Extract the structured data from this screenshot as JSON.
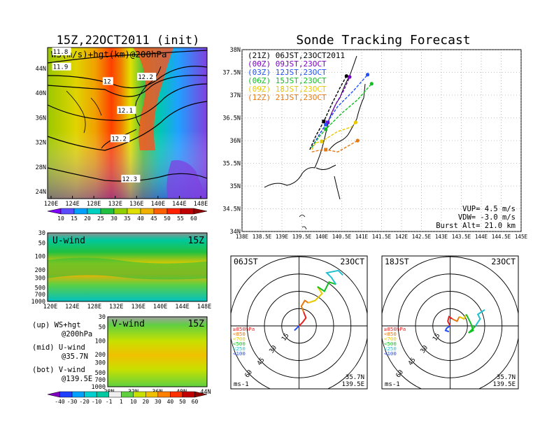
{
  "header": {
    "left_title": "15Z,22OCT2011 (init)",
    "right_title": "Sonde Tracking Forecast"
  },
  "colors": {
    "c00": "#7a00c8",
    "c03": "#2050ff",
    "c06": "#10c020",
    "c09": "#e8c800",
    "c12": "#e87810",
    "c21": "#000000"
  },
  "chart_data": [
    {
      "type": "heatmap",
      "panel": "map-200hPa",
      "label": "WS(m/s)+hgt(km)@200hPa",
      "x_ticks": [
        "120E",
        "124E",
        "128E",
        "132E",
        "136E",
        "140E",
        "144E",
        "148E"
      ],
      "y_ticks": [
        "44N",
        "40N",
        "36N",
        "32N",
        "28N",
        "24N"
      ],
      "xlim": [
        120,
        150
      ],
      "ylim": [
        22,
        46
      ],
      "contour_labels": [
        {
          "text": "11.8",
          "lon": 121.0,
          "lat": 45.1
        },
        {
          "text": "11.9",
          "lon": 121.0,
          "lat": 42.7
        },
        {
          "text": "12",
          "lon": 130.5,
          "lat": 40.4
        },
        {
          "text": "12.2",
          "lon": 137.0,
          "lat": 41.1
        },
        {
          "text": "12.1",
          "lon": 133.2,
          "lat": 35.8
        },
        {
          "text": "12.2",
          "lon": 132.0,
          "lat": 31.3
        },
        {
          "text": "12.3",
          "lon": 134.0,
          "lat": 24.9
        }
      ],
      "colorbar_ticks": [
        "10",
        "15",
        "20",
        "25",
        "30",
        "35",
        "40",
        "45",
        "50",
        "55",
        "60"
      ],
      "colorbar_colors": [
        "#8000ff",
        "#5a4cff",
        "#00a0ff",
        "#00d0c0",
        "#20c040",
        "#90d000",
        "#e0e000",
        "#f0b000",
        "#ff6000",
        "#ff2000",
        "#c00000",
        "#900000"
      ]
    },
    {
      "type": "heatmap",
      "panel": "u-wind",
      "label": "U-wind",
      "time": "15Z",
      "y_ticks": [
        "30",
        "50",
        "100",
        "200",
        "300",
        "500",
        "700",
        "1000"
      ],
      "x_ticks": [
        "120E",
        "124E",
        "128E",
        "132E",
        "136E",
        "140E",
        "144E",
        "148E"
      ]
    },
    {
      "type": "heatmap",
      "panel": "v-wind",
      "label": "V-wind",
      "time": "15Z",
      "y_ticks": [
        "30",
        "50",
        "100",
        "200",
        "300",
        "500",
        "700",
        "1000"
      ],
      "x_ticks": [
        "28N",
        "32N",
        "36N",
        "40N",
        "44N"
      ],
      "colorbar_ticks": [
        "-40",
        "-30",
        "-20",
        "-10",
        "-1",
        "1",
        "10",
        "20",
        "30",
        "40",
        "50",
        "60"
      ],
      "colorbar_colors": [
        "#8000c0",
        "#2040ff",
        "#00a0ff",
        "#00d0d0",
        "#00c8a0",
        "#f0f0f0",
        "#60d040",
        "#c8e000",
        "#f0c000",
        "#ff8000",
        "#ff3000",
        "#c00000",
        "#900000"
      ]
    },
    {
      "type": "line",
      "panel": "sonde-tracking-map",
      "x_ticks": [
        "138E",
        "138.5E",
        "139E",
        "139.5E",
        "140E",
        "140.5E",
        "141E",
        "141.5E",
        "142E",
        "142.5E",
        "143E",
        "143.5E",
        "144E",
        "144.5E",
        "145E"
      ],
      "y_ticks": [
        "38N",
        "37.5N",
        "37N",
        "36.5N",
        "36N",
        "35.5N",
        "35N",
        "34.5N",
        "34N"
      ],
      "xlim": [
        138,
        145
      ],
      "ylim": [
        34,
        38
      ],
      "series": [
        {
          "name": "(21Z)  06JST,23OCT2011",
          "color": "#000000",
          "x": [
            139.7,
            139.85,
            140.05,
            140.25,
            140.45,
            140.62
          ],
          "y": [
            35.8,
            36.1,
            36.42,
            36.8,
            37.15,
            37.42
          ]
        },
        {
          "name": "(00Z)  09JST,23OCT",
          "color": "#7a00c8",
          "x": [
            139.75,
            139.95,
            140.15,
            140.35,
            140.55,
            140.7
          ],
          "y": [
            35.85,
            36.15,
            36.4,
            36.8,
            37.1,
            37.4
          ]
        },
        {
          "name": "(03Z)  12JST,23OCT",
          "color": "#2050ff",
          "x": [
            139.75,
            139.95,
            140.1,
            140.4,
            140.8,
            141.15
          ],
          "y": [
            35.85,
            36.15,
            36.35,
            36.75,
            37.1,
            37.45
          ]
        },
        {
          "name": "(06Z)  15JST,23OCT",
          "color": "#10c020",
          "x": [
            139.75,
            139.95,
            140.1,
            140.5,
            140.9,
            141.25
          ],
          "y": [
            35.85,
            36.1,
            36.25,
            36.6,
            36.9,
            37.25
          ]
        },
        {
          "name": "(09Z)  18JST,23OCT",
          "color": "#e8c800",
          "x": [
            139.75,
            139.85,
            140.0,
            140.4,
            140.75,
            140.85
          ],
          "y": [
            35.8,
            35.95,
            35.98,
            36.2,
            36.3,
            36.4
          ]
        },
        {
          "name": "(12Z)  21JST,23OCT",
          "color": "#e87810",
          "x": [
            139.75,
            139.9,
            140.1,
            140.4,
            140.6,
            140.9
          ],
          "y": [
            35.75,
            35.78,
            35.8,
            35.75,
            35.85,
            36.0
          ]
        }
      ],
      "annotations": [
        "VUP=  4.5 m/s",
        "VDW= -3.0 m/s",
        "Burst Alt= 21.0 km"
      ]
    },
    {
      "type": "line",
      "panel": "hodograph-06JST",
      "time": "06JST",
      "date": "23OCT",
      "rings": [
        "15",
        "30",
        "45",
        "60"
      ],
      "legend": [
        "≥850hPa",
        "<850",
        "<700",
        "<500",
        "<250",
        "<100"
      ],
      "location": [
        "35.7N",
        "139.5E"
      ],
      "units": "ms-1",
      "series": [
        {
          "name": "≥850hPa",
          "color": "#e82020",
          "u": [
            0,
            3,
            6,
            4
          ],
          "v": [
            0,
            3,
            7,
            12
          ]
        },
        {
          "name": "<850",
          "color": "#e87810",
          "u": [
            4,
            2,
            5,
            8
          ],
          "v": [
            12,
            17,
            22,
            20
          ]
        },
        {
          "name": "<700",
          "color": "#e8c800",
          "u": [
            8,
            14,
            20,
            16
          ],
          "v": [
            20,
            22,
            28,
            34
          ]
        },
        {
          "name": "<500",
          "color": "#10c020",
          "u": [
            16,
            22,
            26,
            32
          ],
          "v": [
            34,
            30,
            38,
            36
          ]
        },
        {
          "name": "<250",
          "color": "#20c0d0",
          "u": [
            32,
            28,
            24,
            34,
            38
          ],
          "v": [
            36,
            42,
            46,
            48,
            44
          ]
        },
        {
          "name": "<100",
          "color": "#2050ff",
          "u": [
            0,
            -2,
            -4
          ],
          "v": [
            0,
            -2,
            -4
          ]
        }
      ]
    },
    {
      "type": "line",
      "panel": "hodograph-18JST",
      "time": "18JST",
      "date": "23OCT",
      "rings": [
        "15",
        "30",
        "45",
        "60"
      ],
      "legend": [
        "≥850hPa",
        "<850",
        "<700",
        "<500",
        "<250",
        "<100"
      ],
      "location": [
        "35.7N",
        "139.5E"
      ],
      "units": "ms-1",
      "series": [
        {
          "name": "≥850hPa",
          "color": "#e82020",
          "u": [
            0,
            -2,
            -1,
            2
          ],
          "v": [
            0,
            4,
            8,
            6
          ]
        },
        {
          "name": "<850",
          "color": "#e87810",
          "u": [
            2,
            6,
            8
          ],
          "v": [
            6,
            4,
            8
          ]
        },
        {
          "name": "<700",
          "color": "#e8c800",
          "u": [
            8,
            12,
            14
          ],
          "v": [
            8,
            6,
            10
          ]
        },
        {
          "name": "<500",
          "color": "#10c020",
          "u": [
            14,
            18,
            20,
            16,
            22
          ],
          "v": [
            10,
            2,
            -4,
            -6,
            0
          ]
        },
        {
          "name": "<250",
          "color": "#20c0d0",
          "u": [
            22,
            26,
            24,
            30
          ],
          "v": [
            0,
            6,
            10,
            14
          ]
        },
        {
          "name": "<100",
          "color": "#2050ff",
          "u": [
            0,
            -3,
            -4,
            -1
          ],
          "v": [
            0,
            -2,
            -4,
            -5
          ]
        }
      ]
    }
  ],
  "left_legend": {
    "up": "(up) WS+hgt",
    "up2": "@200hPa",
    "mid": "(mid) U-wind",
    "mid2": "@35.7N",
    "bot": "(bot) V-wind",
    "bot2": "@139.5E"
  }
}
